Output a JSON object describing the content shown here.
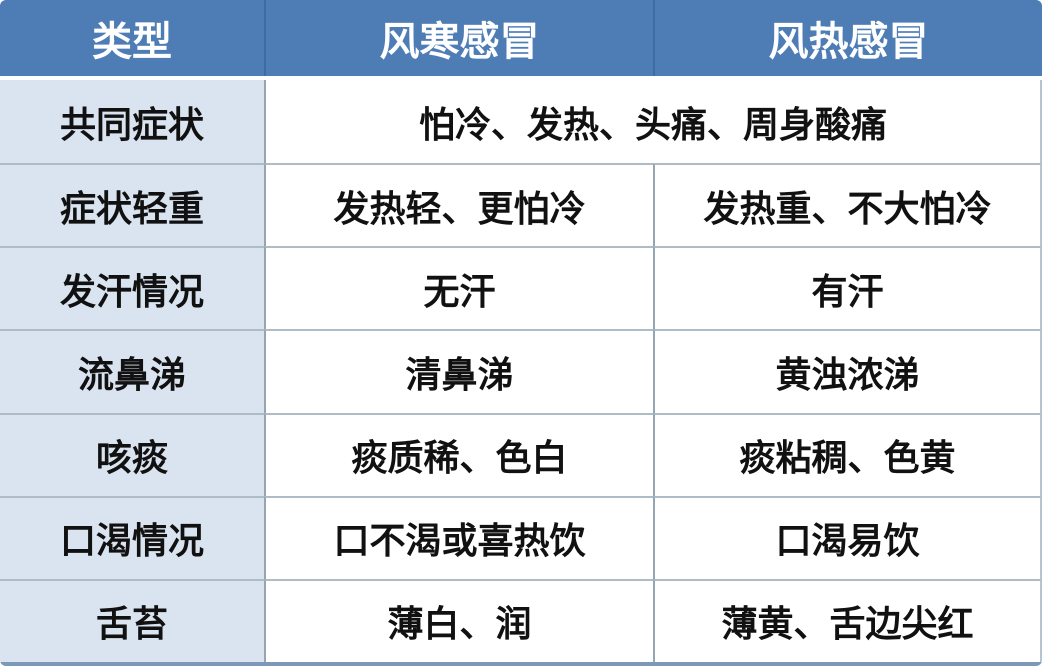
{
  "table": {
    "columns": [
      {
        "label": "类型"
      },
      {
        "label": "风寒感冒"
      },
      {
        "label": "风热感冒"
      }
    ],
    "rows": [
      {
        "label": "共同症状",
        "merged": true,
        "values": [
          "怕冷、发热、头痛、周身酸痛"
        ]
      },
      {
        "label": "症状轻重",
        "merged": false,
        "values": [
          "发热轻、更怕冷",
          "发热重、不大怕冷"
        ]
      },
      {
        "label": "发汗情况",
        "merged": false,
        "values": [
          "无汗",
          "有汗"
        ]
      },
      {
        "label": "流鼻涕",
        "merged": false,
        "values": [
          "清鼻涕",
          "黄浊浓涕"
        ]
      },
      {
        "label": "咳痰",
        "merged": false,
        "values": [
          "痰质稀、色白",
          "痰粘稠、色黄"
        ]
      },
      {
        "label": "口渴情况",
        "merged": false,
        "values": [
          "口不渴或喜热饮",
          "口渴易饮"
        ]
      },
      {
        "label": "舌苔",
        "merged": false,
        "values": [
          "薄白、润",
          "薄黄、舌边尖红"
        ]
      }
    ],
    "colors": {
      "header_bg": "#4E7DB5",
      "header_divider": "#3D6BA2",
      "header_text": "#FFFFFF",
      "label_column_bg": "#DAE4F1",
      "body_bg": "#FFFFFF",
      "body_text": "#111111",
      "horizontal_grid": "#AEBCC7",
      "vertical_grid": "#97A4B2",
      "bottom_strip": "#7E98B8"
    }
  }
}
